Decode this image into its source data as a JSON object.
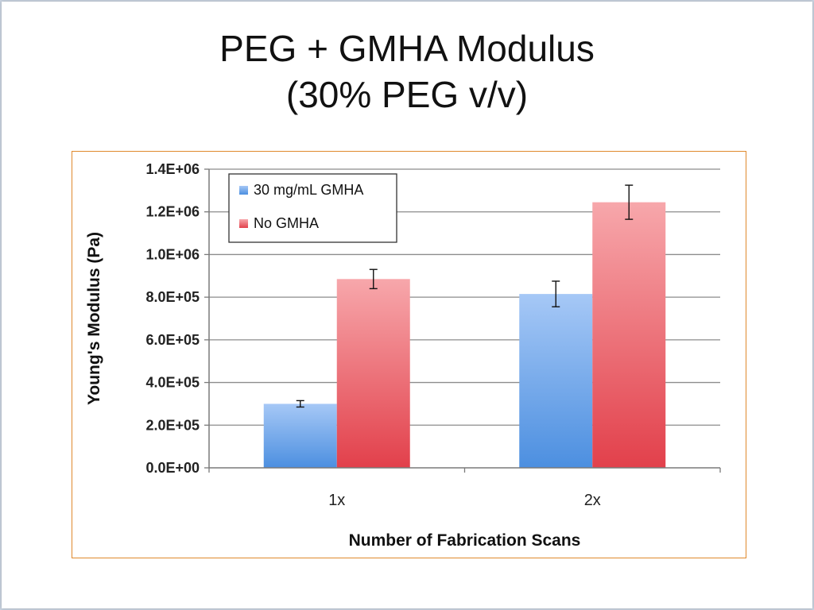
{
  "slide": {
    "title_line1": "PEG + GMHA Modulus",
    "title_line2": "(30% PEG v/v)"
  },
  "chart_data": {
    "type": "bar",
    "categories": [
      "1x",
      "2x"
    ],
    "series": [
      {
        "name": "30 mg/mL GMHA",
        "values": [
          300000,
          815000
        ],
        "errors": [
          15000,
          60000
        ],
        "color_top": "#a6c8f6",
        "color_bottom": "#4c8fe0"
      },
      {
        "name": "No GMHA",
        "values": [
          885000,
          1245000
        ],
        "errors": [
          45000,
          80000
        ],
        "color_top": "#f7a7ab",
        "color_bottom": "#e2404b"
      }
    ],
    "xlabel": "Number of Fabrication Scans",
    "ylabel": "Young's Modulus (Pa)",
    "ylim": [
      0,
      1400000
    ],
    "yticks": [
      0,
      200000,
      400000,
      600000,
      800000,
      1000000,
      1200000,
      1400000
    ],
    "ytick_labels": [
      "0.0E+00",
      "2.0E+05",
      "4.0E+05",
      "6.0E+05",
      "8.0E+05",
      "1.0E+06",
      "1.2E+06",
      "1.4E+06"
    ],
    "grid": true,
    "legend_position": "top-left"
  }
}
